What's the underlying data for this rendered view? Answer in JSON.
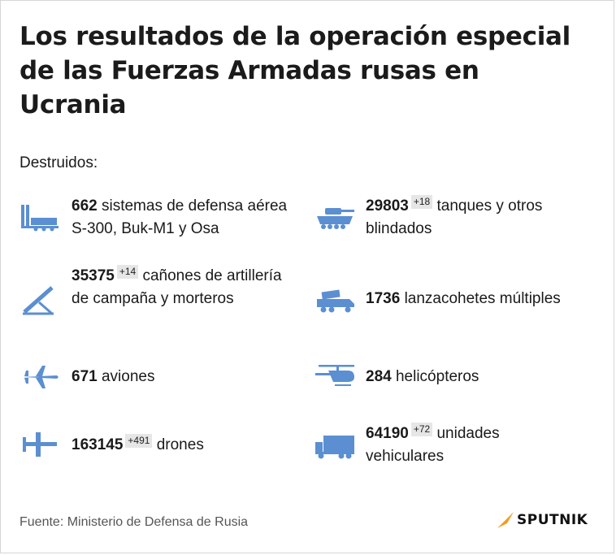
{
  "header": {
    "title": "Los resultados de la operación especial de las Fuerzas Armadas rusas en Ucrania",
    "subtitle": "Destruidos:"
  },
  "colors": {
    "icon": "#5b8fd1",
    "accent": "#f39c1e",
    "delta_bg": "#e6e6e6"
  },
  "items": [
    {
      "icon": "sam-launcher-icon",
      "number": "662",
      "delta": "",
      "text": "sistemas de defensa aérea S-300, Buk-M1 y Osa"
    },
    {
      "icon": "tank-icon",
      "number": "29803",
      "delta": "+18",
      "text": "tanques y otros blindados"
    },
    {
      "icon": "artillery-icon",
      "number": "35375",
      "delta": "+14",
      "text": "cañones de artillería de campaña y morteros"
    },
    {
      "icon": "rocket-launcher-truck-icon",
      "number": "1736",
      "delta": "",
      "text": "lanzacohetes múltiples"
    },
    {
      "icon": "airplane-icon",
      "number": "671",
      "delta": "",
      "text": "aviones"
    },
    {
      "icon": "helicopter-icon",
      "number": "284",
      "delta": "",
      "text": "helicópteros"
    },
    {
      "icon": "drone-icon",
      "number": "163145",
      "delta": "+491",
      "text": "drones"
    },
    {
      "icon": "truck-icon",
      "number": "64190",
      "delta": "+72",
      "text": "unidades vehiculares"
    }
  ],
  "footer": {
    "source": "Fuente: Ministerio de Defensa de Rusia",
    "brand": "SPUTNIK"
  }
}
